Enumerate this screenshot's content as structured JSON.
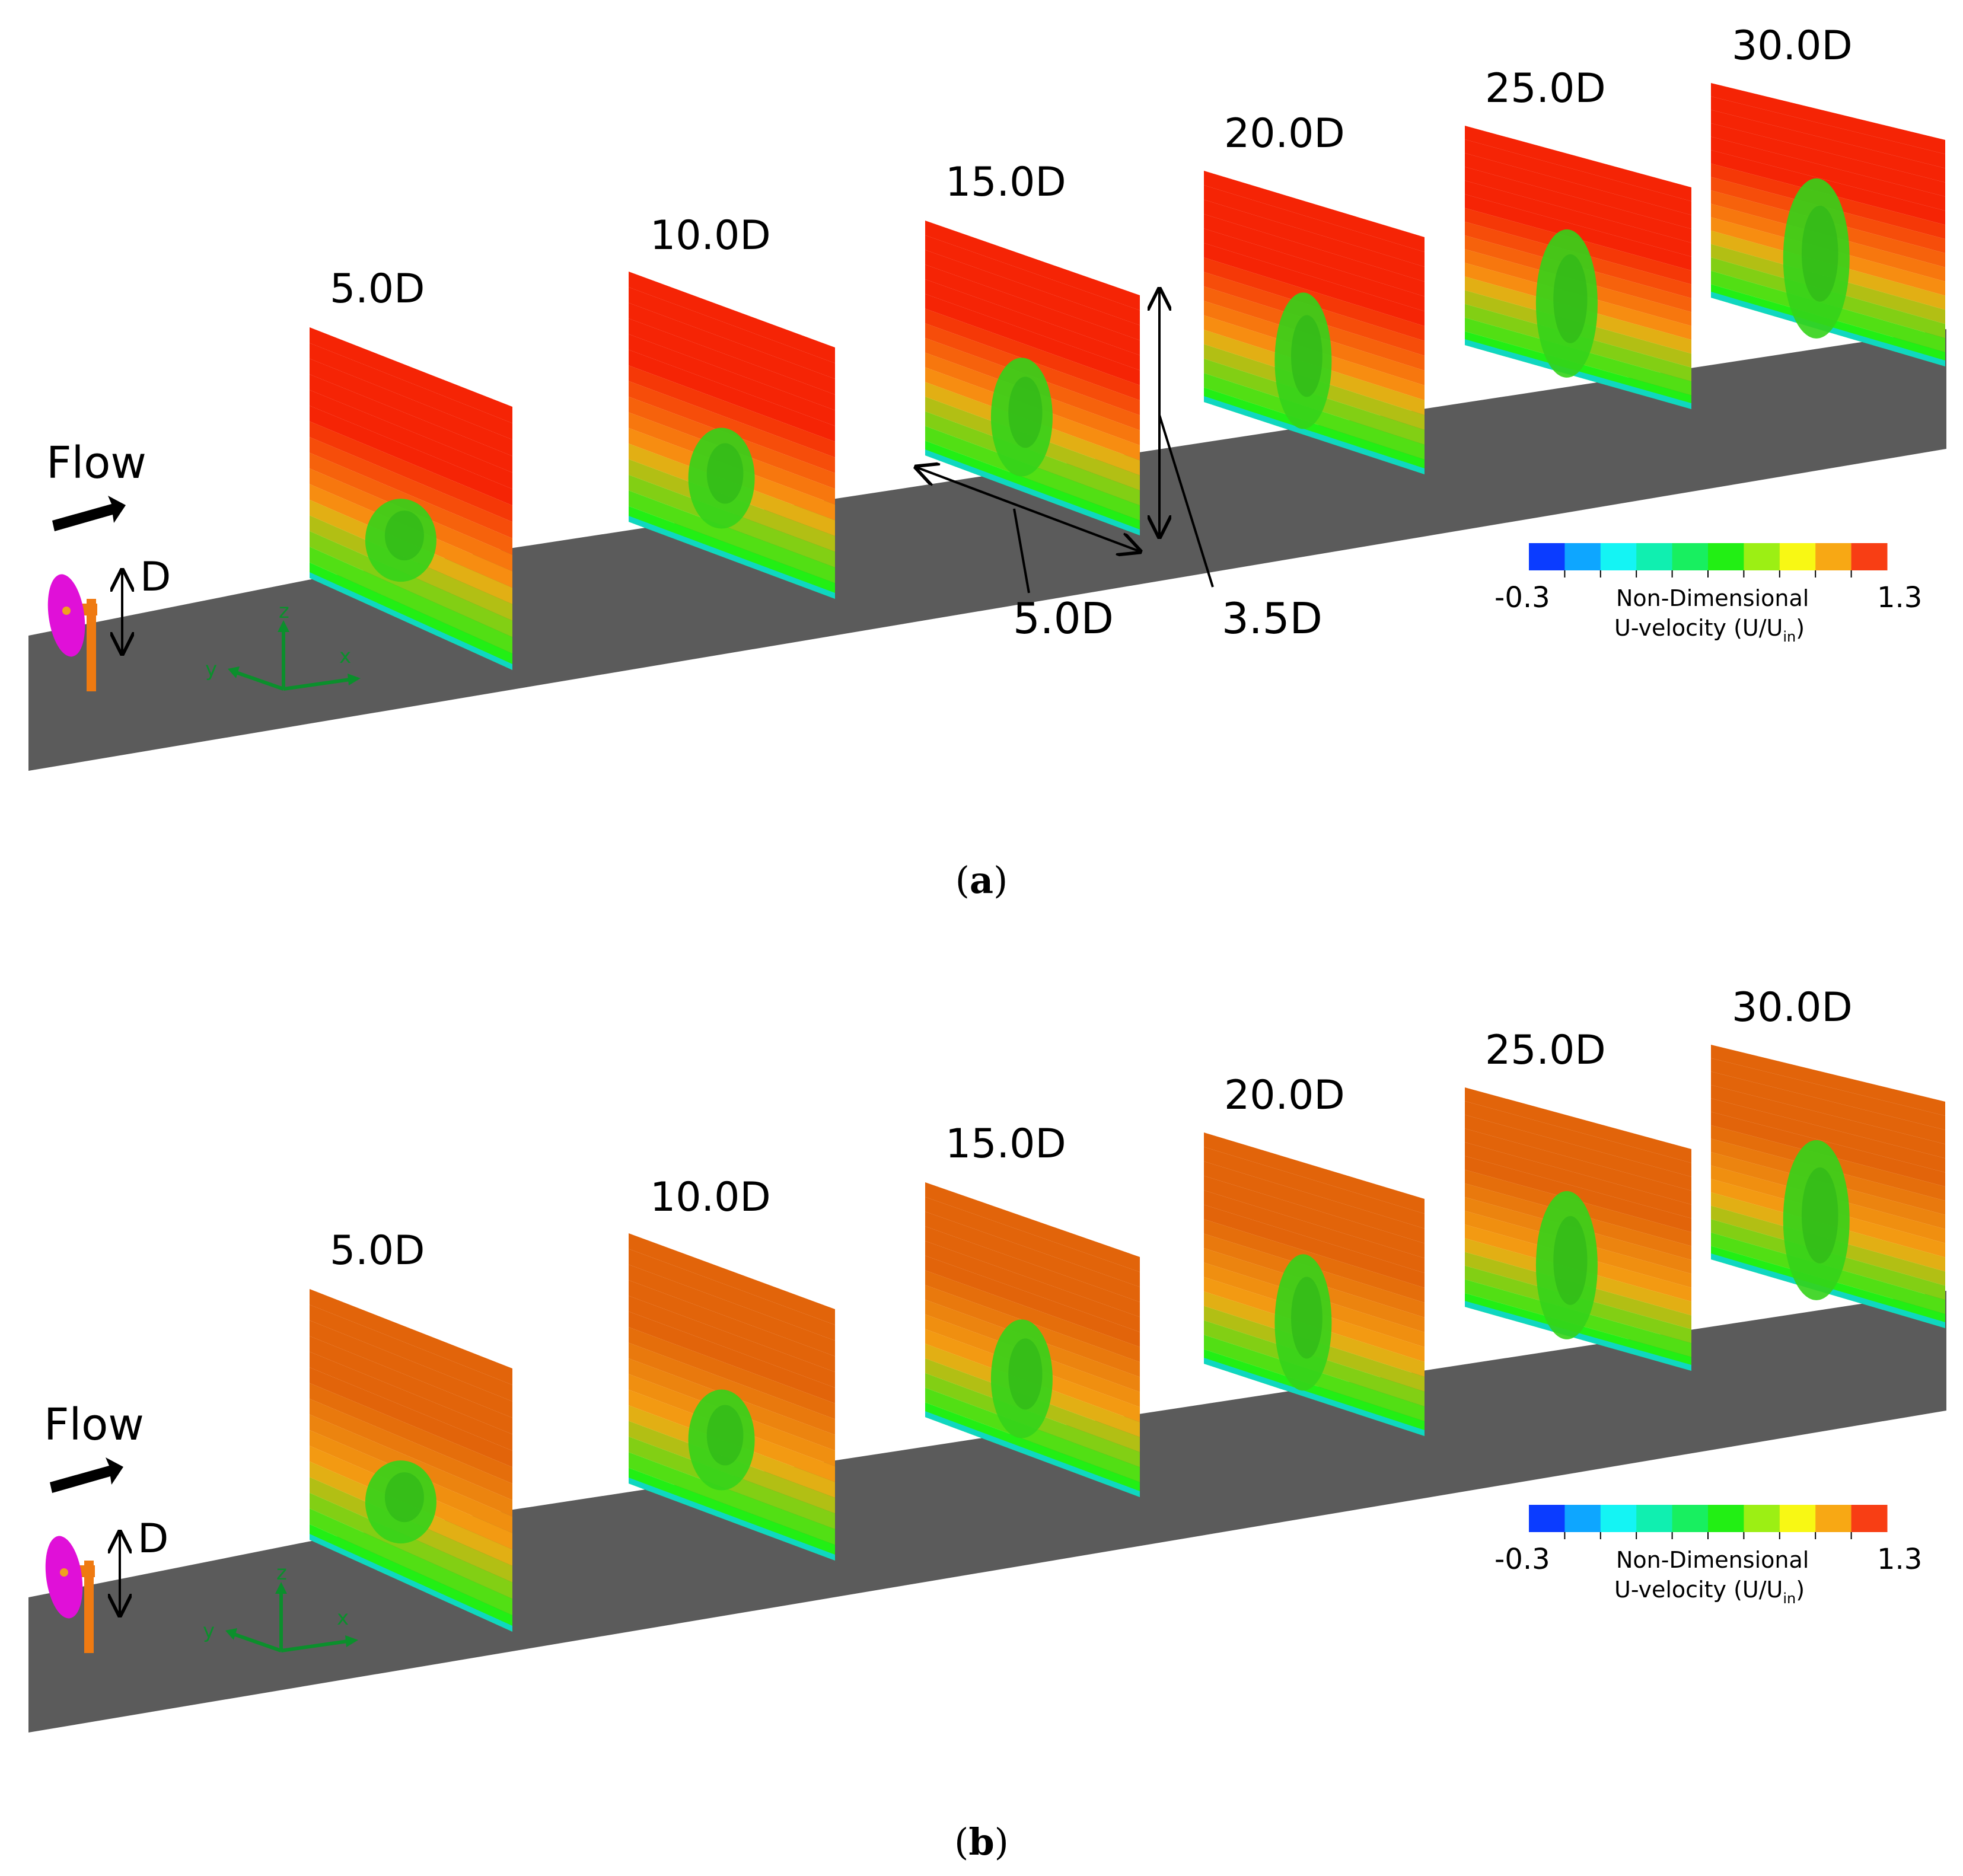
{
  "figure": {
    "flow_label": "Flow",
    "diameter_label": "D",
    "axes": {
      "x": "x",
      "y": "y",
      "z": "z"
    },
    "planes": [
      "5.0D",
      "10.0D",
      "15.0D",
      "20.0D",
      "25.0D",
      "30.0D"
    ],
    "dimensions": {
      "spacing": "5.0D",
      "height": "3.5D"
    },
    "colorbar": {
      "min": "-0.3",
      "max": "1.3",
      "title_line1": "Non-Dimensional",
      "title_line2_prefix": "U-velocity (U/U",
      "title_line2_sub": "in",
      "title_line2_suffix": ")",
      "colors": [
        "#0b3cff",
        "#0ea6ff",
        "#14f4f4",
        "#10efb0",
        "#18ef60",
        "#22ef14",
        "#9cef14",
        "#f8f814",
        "#f8a814",
        "#f83e14"
      ]
    },
    "colors": {
      "ground": "#5b5b5b",
      "panel_a_top": "#f52405",
      "panel_b_top": "#e2640a",
      "wake": "#34d31a",
      "rotor": "#e010d8",
      "tower": "#ef7a11",
      "axis": "#0b8f2c"
    }
  },
  "panels": [
    {
      "caption_open": "(",
      "caption_letter": "a",
      "caption_close": ")"
    },
    {
      "caption_open": "(",
      "caption_letter": "b",
      "caption_close": ")"
    }
  ]
}
